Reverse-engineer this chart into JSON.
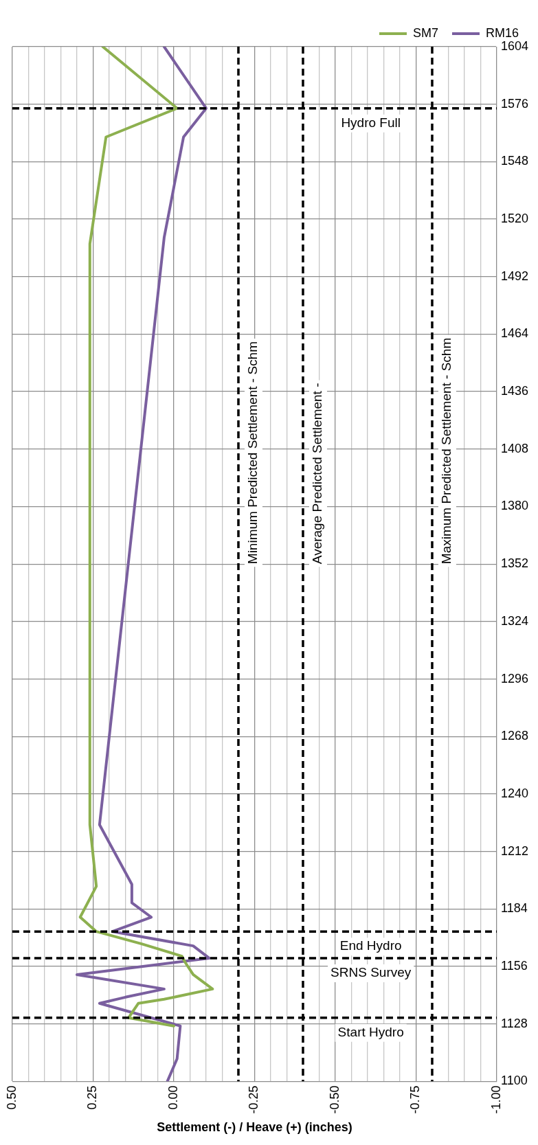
{
  "chart_data": {
    "type": "line",
    "orientation": "horizontal",
    "xlabel": "Settlement (-) / Heave (+) (inches)",
    "ylim": [
      1100,
      1604
    ],
    "yticks": [
      1100,
      1128,
      1156,
      1184,
      1212,
      1240,
      1268,
      1296,
      1324,
      1352,
      1380,
      1408,
      1436,
      1464,
      1492,
      1520,
      1548,
      1576,
      1604
    ],
    "xlim": [
      0.5,
      -1.0
    ],
    "xticks": [
      {
        "value": 0.5,
        "label": "0.50"
      },
      {
        "value": 0.45,
        "label": null
      },
      {
        "value": 0.4,
        "label": null
      },
      {
        "value": 0.35,
        "label": null
      },
      {
        "value": 0.3,
        "label": null
      },
      {
        "value": 0.25,
        "label": "0.25"
      },
      {
        "value": 0.2,
        "label": null
      },
      {
        "value": 0.15,
        "label": null
      },
      {
        "value": 0.1,
        "label": null
      },
      {
        "value": 0.05,
        "label": null
      },
      {
        "value": 0,
        "label": "0.00"
      },
      {
        "value": -0.05,
        "label": null
      },
      {
        "value": -0.1,
        "label": null
      },
      {
        "value": -0.15,
        "label": null
      },
      {
        "value": -0.25,
        "label": "-0.25"
      },
      {
        "value": -0.3,
        "label": null
      },
      {
        "value": -0.35,
        "label": null
      },
      {
        "value": -0.45,
        "label": null
      },
      {
        "value": -0.5,
        "label": "-0.50"
      },
      {
        "value": -0.55,
        "label": null
      },
      {
        "value": -0.6,
        "label": null
      },
      {
        "value": -0.65,
        "label": null
      },
      {
        "value": -0.7,
        "label": null
      },
      {
        "value": -0.75,
        "label": "-0.75"
      },
      {
        "value": -0.85,
        "label": null
      },
      {
        "value": -0.9,
        "label": null
      },
      {
        "value": -0.95,
        "label": null
      },
      {
        "value": -1.0,
        "label": "-1.00"
      }
    ],
    "series": [
      {
        "name": "SM7",
        "color": "#8db04f",
        "x": [
          1127,
          1131,
          1138,
          1140,
          1145,
          1152,
          1158,
          1161,
          1167,
          1173,
          1180,
          1195,
          1225,
          1508,
          1560,
          1574,
          1604
        ],
        "values": [
          0.0,
          0.14,
          0.11,
          0.03,
          -0.12,
          -0.06,
          -0.035,
          -0.025,
          0.1,
          0.24,
          0.29,
          0.24,
          0.26,
          0.26,
          0.21,
          -0.01,
          0.22
        ]
      },
      {
        "name": "RM16",
        "color": "#7a5f9f",
        "x": [
          1100,
          1111,
          1127,
          1138,
          1141,
          1145,
          1152,
          1160,
          1166,
          1173,
          1180,
          1187,
          1196,
          1225,
          1511,
          1560,
          1574,
          1604
        ],
        "values": [
          0.02,
          -0.01,
          -0.02,
          0.23,
          0.15,
          0.03,
          0.3,
          -0.11,
          -0.06,
          0.19,
          0.07,
          0.13,
          0.13,
          0.23,
          0.03,
          -0.03,
          -0.1,
          0.03
        ]
      }
    ],
    "ref_lines": [
      {
        "axis": "x",
        "value": -0.2,
        "label": "Minimum Predicted Settlement - Schm",
        "color": "#000000",
        "line_style": "dashed"
      },
      {
        "axis": "x",
        "value": -0.4,
        "label": "Average Predicted Settlement -",
        "color": "#000000",
        "line_style": "dashed"
      },
      {
        "axis": "x",
        "value": -0.8,
        "label": "Maximum Predicted Settlement - Schm",
        "color": "#000000",
        "line_style": "dashed"
      },
      {
        "axis": "y",
        "value": 1131,
        "label": "Start Hydro",
        "color": "#000000",
        "line_style": "dashed"
      },
      {
        "axis": "y",
        "value": 1160,
        "label": "SRNS Survey",
        "color": "#000000",
        "line_style": "dashed"
      },
      {
        "axis": "y",
        "value": 1173,
        "label": "End Hydro",
        "color": "#000000",
        "line_style": "dashed"
      },
      {
        "axis": "y",
        "value": 1574,
        "label": "Hydro Full",
        "color": "#000000",
        "line_style": "dashed"
      }
    ],
    "grid": true,
    "legend": "top right",
    "marker": "none",
    "line_style": "solid"
  }
}
